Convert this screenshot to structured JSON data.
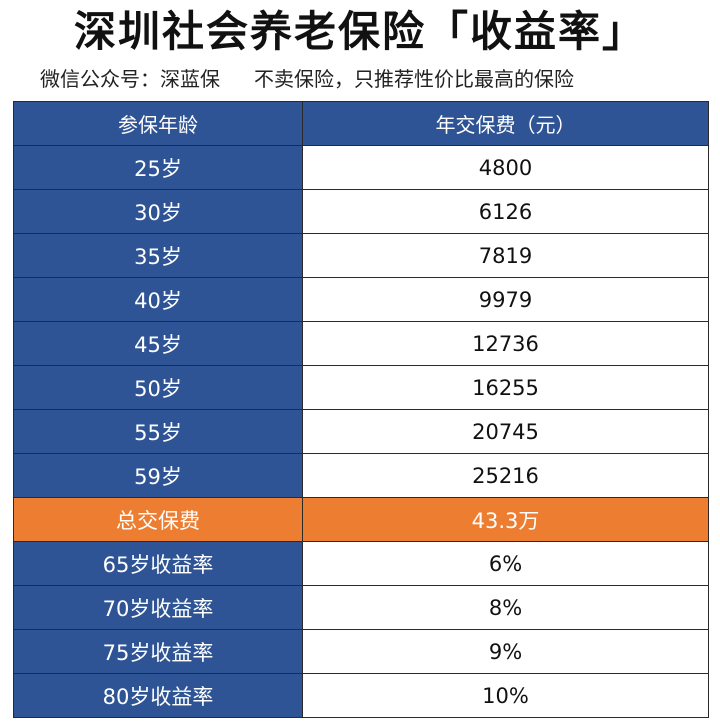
{
  "title": "深圳社会养老保险「收益率」",
  "subtitle": {
    "left": "微信公众号：深蓝保",
    "right": "不卖保险，只推荐性价比最高的保险"
  },
  "colors": {
    "header_blue": "#2f5496",
    "total_orange": "#ed7d31"
  },
  "chart_data": {
    "type": "table",
    "columns": [
      "参保年龄",
      "年交保费（元）"
    ],
    "rows": [
      {
        "label": "25岁",
        "value": "4800"
      },
      {
        "label": "30岁",
        "value": "6126"
      },
      {
        "label": "35岁",
        "value": "7819"
      },
      {
        "label": "40岁",
        "value": "9979"
      },
      {
        "label": "45岁",
        "value": "12736"
      },
      {
        "label": "50岁",
        "value": "16255"
      },
      {
        "label": "55岁",
        "value": "20745"
      },
      {
        "label": "59岁",
        "value": "25216"
      }
    ],
    "total": {
      "label": "总交保费",
      "value": "43.3万"
    },
    "returns": [
      {
        "label": "65岁收益率",
        "value": "6%"
      },
      {
        "label": "70岁收益率",
        "value": "8%"
      },
      {
        "label": "75岁收益率",
        "value": "9%"
      },
      {
        "label": "80岁收益率",
        "value": "10%"
      }
    ]
  }
}
